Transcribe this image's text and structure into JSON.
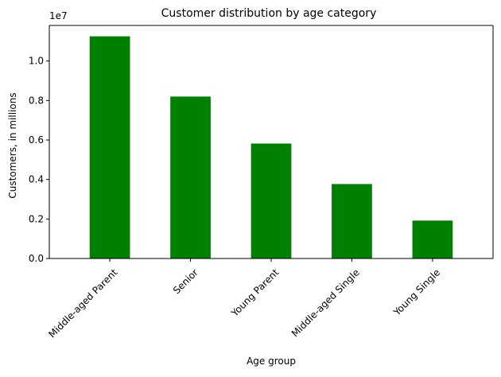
{
  "chart_data": {
    "type": "bar",
    "title": "Customer distribution by age category",
    "xlabel": "Age group",
    "ylabel": "Customers, in millions",
    "offset_text": "1e7",
    "categories": [
      "Middle-aged Parent",
      "Senior",
      "Young Parent",
      "Middle-aged Single",
      "Young Single"
    ],
    "series": [
      {
        "values": [
          11250000,
          8200000,
          5820000,
          3770000,
          1920000
        ]
      }
    ],
    "yscale_divisor": 10000000,
    "ylim": [
      0,
      11800000
    ],
    "yticks": [
      0,
      2000000,
      4000000,
      6000000,
      8000000,
      10000000
    ],
    "ytick_labels": [
      "0.0",
      "0.2",
      "0.4",
      "0.6",
      "0.8",
      "1.0"
    ],
    "grid": false,
    "legend": "none",
    "colors": {
      "bar": "#008000",
      "axis": "#000000"
    }
  }
}
